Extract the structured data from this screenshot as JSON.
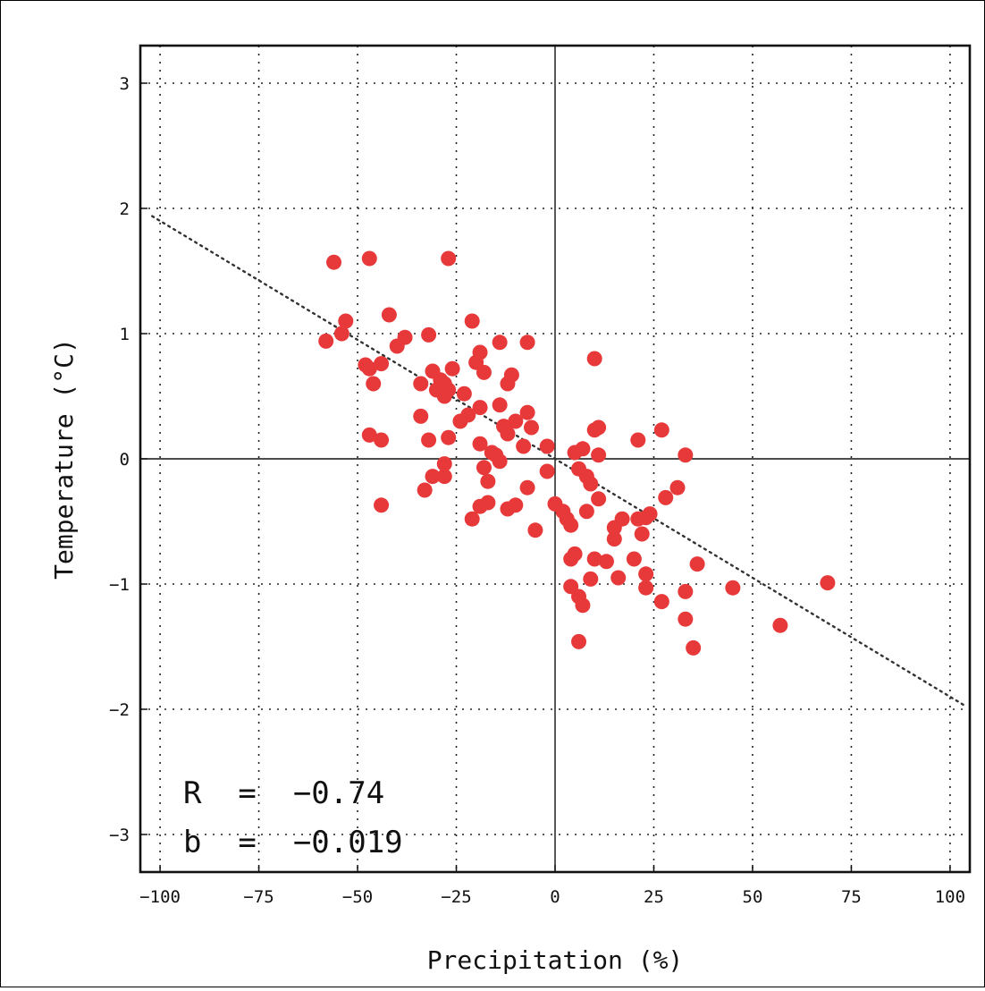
{
  "chart_data": {
    "type": "scatter",
    "xlabel": "Precipitation (%)",
    "ylabel": "Temperature (°C)",
    "xlim": [
      -105,
      105
    ],
    "ylim": [
      -3.3,
      3.3
    ],
    "xticks": [
      -100,
      -75,
      -50,
      -25,
      0,
      25,
      50,
      75,
      100
    ],
    "yticks": [
      -3,
      -2,
      -1,
      0,
      1,
      2,
      3
    ],
    "xtick_labels": [
      "−100",
      "−75",
      "−50",
      "−25",
      "0",
      "25",
      "50",
      "75",
      "100"
    ],
    "ytick_labels": [
      "−3",
      "−2",
      "−1",
      "0",
      "1",
      "2",
      "3"
    ],
    "grid": true,
    "annotations": {
      "r_text": "R  =  −0.74",
      "b_text": "b  =  −0.019"
    },
    "regression": {
      "slope": -0.019,
      "x_range": [
        -102,
        104
      ]
    },
    "marker_color": "#e8393a",
    "points": [
      {
        "x": -56,
        "y": 1.57
      },
      {
        "x": -47,
        "y": 1.6
      },
      {
        "x": -27,
        "y": 1.6
      },
      {
        "x": -58,
        "y": 0.94
      },
      {
        "x": -54,
        "y": 1.0
      },
      {
        "x": -53,
        "y": 1.1
      },
      {
        "x": -42,
        "y": 1.15
      },
      {
        "x": -48,
        "y": 0.75
      },
      {
        "x": -47,
        "y": 0.72
      },
      {
        "x": -46,
        "y": 0.6
      },
      {
        "x": -44,
        "y": 0.76
      },
      {
        "x": -40,
        "y": 0.9
      },
      {
        "x": -38,
        "y": 0.97
      },
      {
        "x": -32,
        "y": 0.99
      },
      {
        "x": -21,
        "y": 1.1
      },
      {
        "x": -47,
        "y": 0.19
      },
      {
        "x": -44,
        "y": 0.15
      },
      {
        "x": -44,
        "y": -0.37
      },
      {
        "x": -34,
        "y": 0.6
      },
      {
        "x": -31,
        "y": 0.7
      },
      {
        "x": -29,
        "y": 0.63
      },
      {
        "x": -28,
        "y": 0.6
      },
      {
        "x": -30,
        "y": 0.55
      },
      {
        "x": -28,
        "y": 0.5
      },
      {
        "x": -27,
        "y": 0.55
      },
      {
        "x": -26,
        "y": 0.72
      },
      {
        "x": -23,
        "y": 0.52
      },
      {
        "x": -34,
        "y": 0.34
      },
      {
        "x": -32,
        "y": 0.15
      },
      {
        "x": -27,
        "y": 0.17
      },
      {
        "x": -24,
        "y": 0.3
      },
      {
        "x": -22,
        "y": 0.35
      },
      {
        "x": -19,
        "y": 0.41
      },
      {
        "x": -20,
        "y": 0.77
      },
      {
        "x": -19,
        "y": 0.85
      },
      {
        "x": -18,
        "y": 0.69
      },
      {
        "x": -14,
        "y": 0.93
      },
      {
        "x": -7,
        "y": 0.93
      },
      {
        "x": -11,
        "y": 0.67
      },
      {
        "x": -12,
        "y": 0.6
      },
      {
        "x": -14,
        "y": 0.43
      },
      {
        "x": -13,
        "y": 0.26
      },
      {
        "x": -12,
        "y": 0.2
      },
      {
        "x": -10,
        "y": 0.3
      },
      {
        "x": -7,
        "y": 0.37
      },
      {
        "x": -6,
        "y": 0.25
      },
      {
        "x": -8,
        "y": 0.1
      },
      {
        "x": -19,
        "y": 0.12
      },
      {
        "x": -16,
        "y": 0.05
      },
      {
        "x": -15,
        "y": 0.03
      },
      {
        "x": -14,
        "y": -0.02
      },
      {
        "x": -18,
        "y": -0.07
      },
      {
        "x": -17,
        "y": -0.18
      },
      {
        "x": -28,
        "y": -0.04
      },
      {
        "x": -28,
        "y": -0.14
      },
      {
        "x": -31,
        "y": -0.14
      },
      {
        "x": -33,
        "y": -0.25
      },
      {
        "x": -17,
        "y": -0.35
      },
      {
        "x": -19,
        "y": -0.38
      },
      {
        "x": -21,
        "y": -0.48
      },
      {
        "x": -12,
        "y": -0.4
      },
      {
        "x": -10,
        "y": -0.37
      },
      {
        "x": -7,
        "y": -0.23
      },
      {
        "x": -5,
        "y": -0.57
      },
      {
        "x": -2,
        "y": -0.1
      },
      {
        "x": -2,
        "y": 0.1
      },
      {
        "x": 0,
        "y": -0.36
      },
      {
        "x": 2,
        "y": -0.42
      },
      {
        "x": 3,
        "y": -0.48
      },
      {
        "x": 4,
        "y": -0.53
      },
      {
        "x": 5,
        "y": 0.05
      },
      {
        "x": 6,
        "y": -0.08
      },
      {
        "x": 7,
        "y": 0.08
      },
      {
        "x": 8,
        "y": -0.14
      },
      {
        "x": 9,
        "y": -0.2
      },
      {
        "x": 10,
        "y": 0.23
      },
      {
        "x": 11,
        "y": 0.25
      },
      {
        "x": 11,
        "y": 0.03
      },
      {
        "x": 10,
        "y": 0.8
      },
      {
        "x": 11,
        "y": -0.32
      },
      {
        "x": 8,
        "y": -0.42
      },
      {
        "x": 4,
        "y": -0.8
      },
      {
        "x": 5,
        "y": -0.76
      },
      {
        "x": 4,
        "y": -1.02
      },
      {
        "x": 6,
        "y": -1.1
      },
      {
        "x": 7,
        "y": -1.17
      },
      {
        "x": 6,
        "y": -1.46
      },
      {
        "x": 9,
        "y": -0.96
      },
      {
        "x": 10,
        "y": -0.8
      },
      {
        "x": 13,
        "y": -0.82
      },
      {
        "x": 15,
        "y": -0.64
      },
      {
        "x": 15,
        "y": -0.55
      },
      {
        "x": 17,
        "y": -0.48
      },
      {
        "x": 16,
        "y": -0.95
      },
      {
        "x": 20,
        "y": -0.8
      },
      {
        "x": 21,
        "y": -0.48
      },
      {
        "x": 22,
        "y": -0.6
      },
      {
        "x": 23,
        "y": -0.47
      },
      {
        "x": 24,
        "y": -0.44
      },
      {
        "x": 23,
        "y": -0.92
      },
      {
        "x": 23,
        "y": -1.03
      },
      {
        "x": 27,
        "y": -1.14
      },
      {
        "x": 21,
        "y": 0.15
      },
      {
        "x": 27,
        "y": 0.23
      },
      {
        "x": 28,
        "y": -0.31
      },
      {
        "x": 31,
        "y": -0.23
      },
      {
        "x": 33,
        "y": 0.03
      },
      {
        "x": 33,
        "y": -1.06
      },
      {
        "x": 33,
        "y": -1.28
      },
      {
        "x": 35,
        "y": -1.51
      },
      {
        "x": 36,
        "y": -0.84
      },
      {
        "x": 45,
        "y": -1.03
      },
      {
        "x": 57,
        "y": -1.33
      },
      {
        "x": 69,
        "y": -0.99
      }
    ]
  }
}
